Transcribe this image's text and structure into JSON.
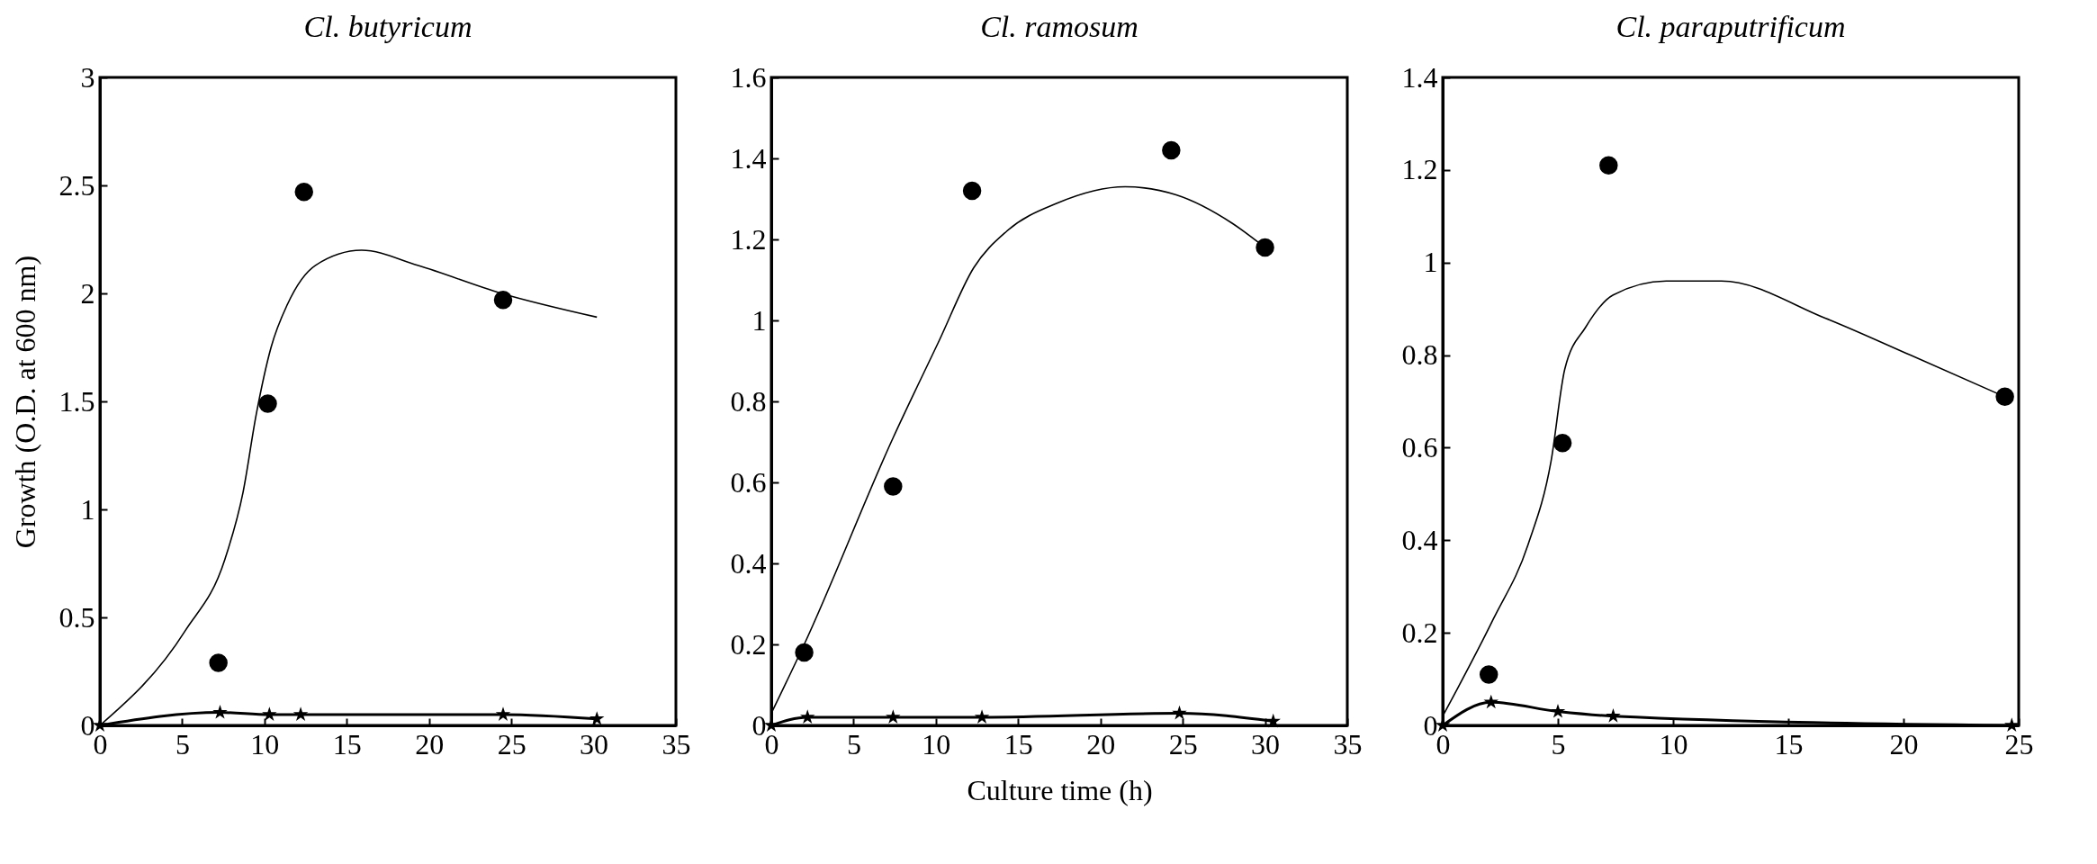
{
  "chart_data": [
    {
      "type": "scatter",
      "title": "Cl. butyricum",
      "ylabel": "Growth (O.D. at 600 nm)",
      "xlim": [
        0,
        35
      ],
      "xticks": [
        0,
        5,
        10,
        15,
        20,
        25,
        30,
        35
      ],
      "ylim": [
        0,
        3
      ],
      "yticks": [
        0,
        0.5,
        1,
        1.5,
        2,
        2.5,
        3
      ],
      "grid": false,
      "series": [
        {
          "color": "#000000",
          "marker": "circle",
          "x": [
            7.2,
            10.2,
            12.4,
            24.5
          ],
          "values": [
            0.29,
            1.49,
            2.47,
            1.97
          ]
        },
        {
          "type": "line",
          "color": "#000000",
          "marker": "none",
          "x": [
            0,
            5.2,
            7.6,
            8.7,
            9.5,
            10.4,
            11.4,
            13.1,
            15.9,
            19.3,
            24.4,
            30.2
          ],
          "values": [
            0,
            0.44,
            0.77,
            1.08,
            1.44,
            1.75,
            1.95,
            2.13,
            2.2,
            2.13,
            2.0,
            1.89
          ]
        },
        {
          "type": "line",
          "color": "#000000",
          "marker": "star",
          "x": [
            0,
            7.3,
            10.3,
            12.2,
            24.5,
            30.2
          ],
          "values": [
            0,
            0.06,
            0.05,
            0.05,
            0.05,
            0.03
          ]
        }
      ]
    },
    {
      "type": "scatter",
      "title": "Cl. ramosum",
      "xlabel": "Culture time (h)",
      "xlim": [
        0,
        35
      ],
      "xticks": [
        0,
        5,
        10,
        15,
        20,
        25,
        30,
        35
      ],
      "ylim": [
        0,
        1.6
      ],
      "yticks": [
        0,
        0.2,
        0.4,
        0.6,
        0.8,
        1,
        1.2,
        1.4,
        1.6
      ],
      "grid": false,
      "series": [
        {
          "color": "#000000",
          "marker": "circle",
          "x": [
            2.0,
            7.4,
            12.2,
            24.3,
            30.0
          ],
          "values": [
            0.18,
            0.59,
            1.32,
            1.42,
            1.18
          ]
        },
        {
          "type": "line",
          "color": "#000000",
          "marker": "none",
          "x": [
            0,
            2,
            7.4,
            10.2,
            12.3,
            14.3,
            17.4,
            21.5,
            24.6,
            28,
            30
          ],
          "values": [
            0.03,
            0.2,
            0.71,
            0.95,
            1.13,
            1.22,
            1.29,
            1.33,
            1.31,
            1.24,
            1.18
          ]
        },
        {
          "type": "line",
          "color": "#000000",
          "marker": "star",
          "x": [
            0,
            2.2,
            7.4,
            12.8,
            24.8,
            30.5
          ],
          "values": [
            0,
            0.02,
            0.02,
            0.02,
            0.03,
            0.01
          ]
        }
      ]
    },
    {
      "type": "scatter",
      "title": "Cl. paraputrificum",
      "xlim": [
        0,
        25
      ],
      "xticks": [
        0,
        5,
        10,
        15,
        20,
        25
      ],
      "ylim": [
        0,
        1.4
      ],
      "yticks": [
        0,
        0.2,
        0.4,
        0.6,
        0.8,
        1,
        1.2,
        1.4
      ],
      "grid": false,
      "series": [
        {
          "color": "#000000",
          "marker": "circle",
          "x": [
            2.0,
            5.2,
            7.2,
            24.4
          ],
          "values": [
            0.11,
            0.61,
            1.21,
            0.71
          ]
        },
        {
          "type": "line",
          "color": "#000000",
          "marker": "none",
          "x": [
            0,
            2.2,
            3.7,
            4.7,
            5.3,
            6.2,
            7.4,
            9.7,
            12.1,
            16.6,
            20.3,
            24.4
          ],
          "values": [
            0.02,
            0.23,
            0.39,
            0.57,
            0.77,
            0.86,
            0.93,
            0.96,
            0.96,
            0.88,
            0.8,
            0.71
          ]
        },
        {
          "type": "line",
          "color": "#000000",
          "marker": "star",
          "x": [
            0,
            2.1,
            5.0,
            7.4,
            24.7
          ],
          "values": [
            0,
            0.05,
            0.03,
            0.02,
            0
          ]
        }
      ]
    }
  ]
}
